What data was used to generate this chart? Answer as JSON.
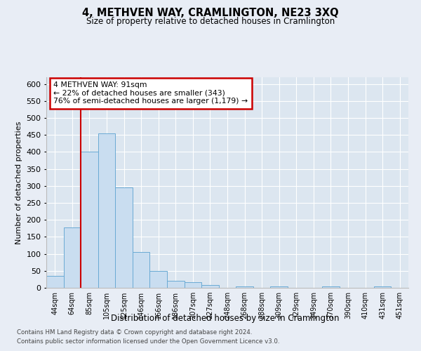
{
  "title": "4, METHVEN WAY, CRAMLINGTON, NE23 3XQ",
  "subtitle": "Size of property relative to detached houses in Cramlington",
  "xlabel": "Distribution of detached houses by size in Cramlington",
  "ylabel": "Number of detached properties",
  "bar_color": "#c9ddf0",
  "bar_edge_color": "#6aaad4",
  "categories": [
    "44sqm",
    "64sqm",
    "85sqm",
    "105sqm",
    "125sqm",
    "146sqm",
    "166sqm",
    "186sqm",
    "207sqm",
    "227sqm",
    "248sqm",
    "268sqm",
    "288sqm",
    "309sqm",
    "329sqm",
    "349sqm",
    "370sqm",
    "390sqm",
    "410sqm",
    "431sqm",
    "451sqm"
  ],
  "values": [
    35,
    178,
    400,
    455,
    295,
    105,
    50,
    20,
    17,
    8,
    0,
    4,
    0,
    4,
    0,
    0,
    4,
    0,
    0,
    4,
    0
  ],
  "ylim": [
    0,
    620
  ],
  "yticks": [
    0,
    50,
    100,
    150,
    200,
    250,
    300,
    350,
    400,
    450,
    500,
    550,
    600
  ],
  "vline_index": 2,
  "vline_color": "#cc0000",
  "annotation_text": "4 METHVEN WAY: 91sqm\n← 22% of detached houses are smaller (343)\n76% of semi-detached houses are larger (1,179) →",
  "annotation_box_color": "#ffffff",
  "annotation_box_edge": "#cc0000",
  "footer_line1": "Contains HM Land Registry data © Crown copyright and database right 2024.",
  "footer_line2": "Contains public sector information licensed under the Open Government Licence v3.0.",
  "background_color": "#e8edf5",
  "plot_background": "#dce6f0",
  "grid_color": "#ffffff"
}
